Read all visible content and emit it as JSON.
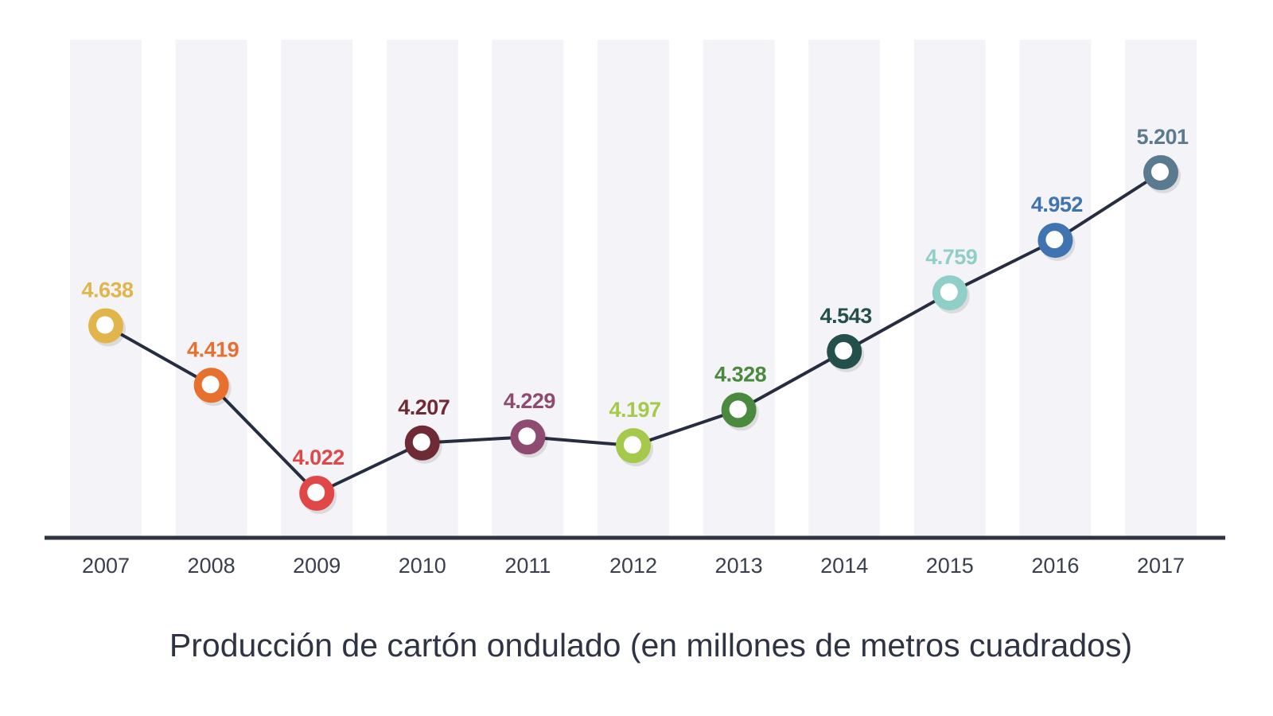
{
  "chart_data": {
    "type": "line",
    "title": "",
    "caption": "Producción de cartón ondulado (en millones de metros cuadrados)",
    "xlabel": "",
    "ylabel": "",
    "categories": [
      "2007",
      "2008",
      "2009",
      "2010",
      "2011",
      "2012",
      "2013",
      "2014",
      "2015",
      "2016",
      "2017"
    ],
    "series": [
      {
        "name": "Producción de cartón ondulado",
        "values": [
          4638,
          4419,
          4022,
          4207,
          4229,
          4197,
          4328,
          4543,
          4759,
          4952,
          5201
        ],
        "labels": [
          "4.638",
          "4.419",
          "4.022",
          "4.207",
          "4.229",
          "4.197",
          "4.328",
          "4.543",
          "4.759",
          "4.952",
          "5.201"
        ],
        "point_colors": [
          "#e2b54a",
          "#e8702e",
          "#e04848",
          "#6e2a35",
          "#8e4a70",
          "#a5c94a",
          "#4a8a3e",
          "#23504a",
          "#8fcfc7",
          "#3f74b0",
          "#5a7a90"
        ],
        "line_color": "#262d40"
      }
    ],
    "grid": false,
    "alternating_column_bands": true,
    "band_color": "#f4f3f7",
    "axis_color": "#2f3445",
    "legend": "none"
  }
}
